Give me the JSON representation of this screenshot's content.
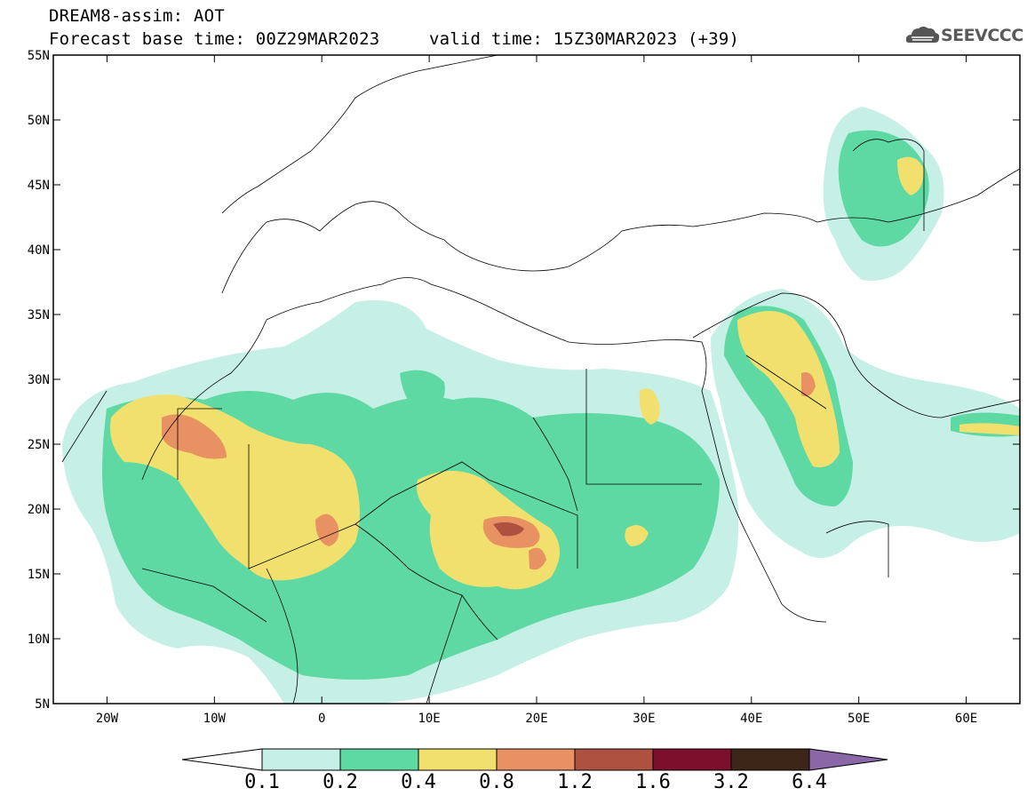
{
  "header": {
    "line1": "DREAM8-assim: AOT",
    "base_time": "Forecast base time: 00Z29MAR2023",
    "valid_time": "valid time: 15Z30MAR2023 (+39)"
  },
  "logo": {
    "text": "SEEVCCC"
  },
  "map": {
    "lon_range": [
      -25,
      65
    ],
    "lat_range": [
      5,
      55
    ],
    "lat_ticks": [
      "55N",
      "50N",
      "45N",
      "40N",
      "35N",
      "30N",
      "25N",
      "20N",
      "15N",
      "10N",
      "5N"
    ],
    "lon_ticks": [
      "20W",
      "10W",
      "0",
      "10E",
      "20E",
      "30E",
      "40E",
      "50E",
      "60E"
    ]
  },
  "colorbar": {
    "colors": [
      "#c6efe6",
      "#5fd9a3",
      "#f2e06e",
      "#e89162",
      "#ae5140",
      "#7c0f2c",
      "#3d2617"
    ],
    "under_color": "#ffffff",
    "over_color": "#8a68a8",
    "labels": [
      "0.1",
      "0.2",
      "0.4",
      "0.8",
      "1.2",
      "1.6",
      "3.2",
      "6.4"
    ]
  }
}
